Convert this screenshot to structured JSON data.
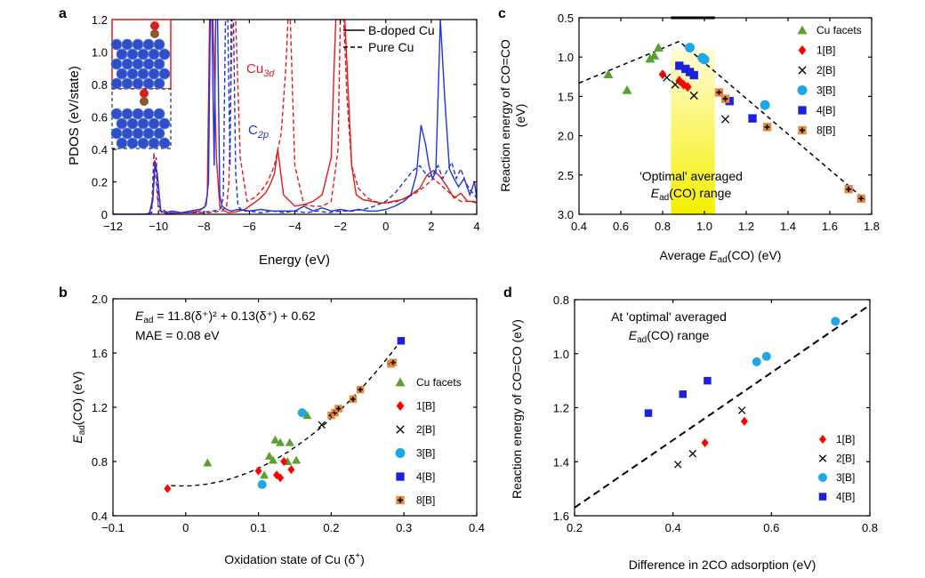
{
  "chart_data": [
    {
      "id": "a",
      "panel_label": "a",
      "type": "line",
      "xlabel": "Energy (eV)",
      "ylabel": "PDOS (eV/state)",
      "xlim": [
        -12,
        4
      ],
      "ylim": [
        0,
        1.2
      ],
      "xticks": [
        "−12",
        "−10",
        "−8",
        "−6",
        "−4",
        "−2",
        "0",
        "2",
        "4"
      ],
      "yticks": [
        "0",
        "0.2",
        "0.4",
        "0.6",
        "0.8",
        "1.0",
        "1.2"
      ],
      "legend": [
        {
          "label": "B-doped Cu",
          "style": "solid"
        },
        {
          "label": "Pure Cu",
          "style": "dashed"
        }
      ],
      "series_labels": [
        {
          "text": "Cu",
          "sub": "3d",
          "color": "#e41a1c"
        },
        {
          "text": "C",
          "sub": "2p",
          "color": "#1f33e0"
        }
      ],
      "series": [
        {
          "name": "Cu3d B-doped",
          "color": "#e41a1c",
          "dash": false,
          "x": [
            -12,
            -10.6,
            -10.4,
            -10.25,
            -10.15,
            -10.05,
            -9.9,
            -9.6,
            -9.2,
            -8.7,
            -8.2,
            -7.95,
            -7.85,
            -7.75,
            -7.6,
            -7.45,
            -7.3,
            -7.1,
            -6.9,
            -6.6,
            -6.2,
            -5.9,
            -5.6,
            -5.3,
            -5.1,
            -4.9,
            -4.8,
            -4.75,
            -4.5,
            -4.0,
            -3.6,
            -3.2,
            -2.8,
            -2.4,
            -2.3,
            -2.2,
            -2.0,
            -1.8,
            -1.6,
            -1.5,
            -1.3,
            -1.0,
            -0.6,
            -0.3,
            0,
            0.3,
            0.7,
            1.1,
            1.5,
            1.8,
            2.1,
            2.4,
            2.7,
            3.0,
            3.3,
            3.6,
            3.9,
            4
          ],
          "y": [
            0,
            0,
            0.005,
            0.1,
            0.33,
            0.25,
            0.02,
            0.005,
            0.008,
            0.01,
            0.02,
            0.05,
            0.12,
            1.2,
            1.2,
            0.35,
            0.05,
            0.02,
            0.01,
            0.015,
            0.03,
            0.06,
            0.09,
            0.13,
            0.18,
            0.25,
            0.35,
            0.4,
            0.12,
            0.05,
            0.06,
            0.08,
            0.12,
            0.35,
            0.8,
            1.2,
            1.2,
            1.2,
            0.6,
            0.3,
            0.12,
            0.09,
            0.08,
            0.07,
            0.07,
            0.08,
            0.09,
            0.12,
            0.16,
            0.24,
            0.27,
            0.23,
            0.17,
            0.1,
            0.13,
            0.08,
            0.08,
            0.07
          ]
        },
        {
          "name": "Cu3d Pure",
          "color": "#e41a1c",
          "dash": true,
          "x": [
            -12,
            -10.6,
            -10.3,
            -10.2,
            -10.0,
            -9.8,
            -9.2,
            -8.5,
            -7.8,
            -7.2,
            -7.0,
            -6.9,
            -6.75,
            -6.6,
            -6.4,
            -6.1,
            -5.8,
            -5.5,
            -5.2,
            -4.9,
            -4.6,
            -4.4,
            -4.3,
            -4.2,
            -4.0,
            -3.6,
            -3.2,
            -2.8,
            -2.4,
            -2.1,
            -2.0,
            -1.85,
            -1.7,
            -1.5,
            -1.2,
            -1.0,
            -0.8,
            -0.5,
            -0.2,
            0.1,
            0.5,
            0.9,
            1.3,
            1.7,
            2.1,
            2.5,
            2.9,
            3.3,
            3.7,
            4
          ],
          "y": [
            0,
            0,
            0.01,
            0.38,
            0.03,
            0.005,
            0.008,
            0.01,
            0.01,
            0.02,
            0.05,
            0.2,
            1.2,
            1.2,
            0.35,
            0.08,
            0.1,
            0.14,
            0.2,
            0.3,
            0.5,
            0.9,
            1.2,
            1.2,
            0.3,
            0.06,
            0.05,
            0.05,
            0.08,
            0.4,
            1.2,
            1.2,
            0.7,
            0.3,
            0.16,
            0.13,
            0.1,
            0.08,
            0.07,
            0.07,
            0.08,
            0.1,
            0.13,
            0.17,
            0.22,
            0.17,
            0.12,
            0.08,
            0.08,
            0.07
          ]
        },
        {
          "name": "C2p B-doped",
          "color": "#1f33e0",
          "dash": false,
          "x": [
            -12,
            -10.7,
            -10.4,
            -10.25,
            -10.15,
            -10.05,
            -9.9,
            -9.7,
            -9.4,
            -9.0,
            -8.6,
            -8.2,
            -8.0,
            -7.9,
            -7.8,
            -7.72,
            -7.65,
            -7.55,
            -7.48,
            -7.4,
            -7.3,
            -7.2,
            -7.0,
            -6.8,
            -6.5,
            -6.0,
            -5.5,
            -5.0,
            -4.5,
            -4.0,
            -3.6,
            -3.2,
            -2.8,
            -2.4,
            -2.0,
            -1.6,
            -1.2,
            -0.8,
            -0.4,
            0,
            0.4,
            0.8,
            1.1,
            1.35,
            1.55,
            1.75,
            1.9,
            2.05,
            2.2,
            2.4,
            2.6,
            2.8,
            3.0,
            3.2,
            3.45,
            3.7,
            3.9,
            4
          ],
          "y": [
            0,
            0,
            0.005,
            0.08,
            0.3,
            0.25,
            0.02,
            0.01,
            0.02,
            0.01,
            0.02,
            0.03,
            0.04,
            0.06,
            0.2,
            1.2,
            1.2,
            0.3,
            1.2,
            1.2,
            0.12,
            0.05,
            0.03,
            0.02,
            0.03,
            0.02,
            0.03,
            0.02,
            0.02,
            0.02,
            0.05,
            0.02,
            0.04,
            0.02,
            0.03,
            0.02,
            0.03,
            0.02,
            0.02,
            0.03,
            0.05,
            0.08,
            0.12,
            0.25,
            0.55,
            0.43,
            0.3,
            0.22,
            0.26,
            1.2,
            0.7,
            0.28,
            0.22,
            0.17,
            0.22,
            0.12,
            0.2,
            0.1
          ]
        },
        {
          "name": "C2p Pure",
          "color": "#1f33e0",
          "dash": true,
          "x": [
            -12,
            -10.6,
            -10.3,
            -10.2,
            -10.1,
            -10.0,
            -9.6,
            -9.0,
            -8.2,
            -7.6,
            -7.3,
            -7.15,
            -7.05,
            -6.95,
            -6.85,
            -6.8,
            -6.7,
            -6.6,
            -6.5,
            -6.3,
            -6.0,
            -5.5,
            -5.0,
            -4.5,
            -4.0,
            -3.5,
            -3.0,
            -2.5,
            -2.0,
            -1.5,
            -1.0,
            -0.5,
            0,
            0.4,
            0.8,
            1.2,
            1.5,
            1.7,
            1.9,
            2.1,
            2.3,
            2.5,
            2.7,
            2.9,
            3.1,
            3.3,
            3.5,
            3.7,
            3.9,
            4
          ],
          "y": [
            0,
            0,
            0.01,
            0.3,
            0.35,
            0.05,
            0.01,
            0.01,
            0.01,
            0.02,
            0.03,
            0.1,
            1.2,
            1.2,
            0.3,
            1.2,
            1.2,
            0.25,
            0.05,
            0.02,
            0.02,
            0.01,
            0.02,
            0.01,
            0.02,
            0.01,
            0.02,
            0.01,
            0.02,
            0.02,
            0.03,
            0.05,
            0.08,
            0.13,
            0.2,
            0.27,
            0.3,
            0.26,
            0.23,
            0.25,
            0.3,
            0.22,
            0.27,
            0.32,
            0.22,
            0.28,
            0.2,
            0.15,
            0.12,
            0.1
          ]
        }
      ]
    },
    {
      "id": "c",
      "panel_label": "c",
      "type": "scatter",
      "xlabel_pre": "Average ",
      "xlabel_it": "E",
      "xlabel_sub": "ad",
      "xlabel_post": "(CO) (eV)",
      "ylabel_lines": [
        "Reaction energy of CO=CO",
        "(eV)"
      ],
      "xlim": [
        0.4,
        1.8
      ],
      "ylim": [
        0.5,
        3.0
      ],
      "y_inverted": true,
      "xticks": [
        0.4,
        0.6,
        0.8,
        1.0,
        1.2,
        1.4,
        1.6,
        1.8
      ],
      "yticks": [
        0.5,
        1.0,
        1.5,
        2.0,
        2.5,
        3.0
      ],
      "xtick_labels": [
        "0.4",
        "0.6",
        "0.8",
        "1.0",
        "1.2",
        "1.4",
        "1.6",
        "1.8"
      ],
      "ytick_labels": [
        "0.5",
        "1.0",
        "1.5",
        "2.0",
        "2.5",
        "3.0"
      ],
      "optimal_range_x": [
        0.84,
        1.05
      ],
      "annotation_line1": "'Optimal' averaged",
      "annotation_line2_it": "E",
      "annotation_line2_sub": "ad",
      "annotation_line2_post": "(CO) range",
      "fit_line": {
        "x": [
          0.4,
          0.88,
          1.77
        ],
        "y": [
          1.33,
          0.8,
          2.82
        ]
      },
      "series": [
        {
          "name": "Cu facets",
          "marker": "triangle",
          "color": "#5aa02c",
          "x": [
            0.54,
            0.63,
            0.74,
            0.76,
            0.78
          ],
          "y": [
            1.22,
            1.42,
            1.02,
            0.98,
            0.88
          ]
        },
        {
          "name": "1[B]",
          "marker": "diamond",
          "color": "#ff0000",
          "x": [
            0.8,
            0.88,
            0.9,
            0.92
          ],
          "y": [
            1.22,
            1.3,
            1.35,
            1.38
          ]
        },
        {
          "name": "2[B]",
          "marker": "x",
          "color": "#000000",
          "x": [
            0.82,
            0.86,
            0.95,
            1.1
          ],
          "y": [
            1.26,
            1.35,
            1.49,
            1.79
          ]
        },
        {
          "name": "3[B]",
          "marker": "circle",
          "color": "#1ea7e8",
          "x": [
            0.93,
            0.99,
            1.0,
            1.29
          ],
          "y": [
            0.88,
            1.01,
            1.03,
            1.61
          ]
        },
        {
          "name": "4[B]",
          "marker": "square",
          "color": "#1a22e0",
          "x": [
            0.88,
            0.91,
            0.93,
            0.95,
            1.12,
            1.23
          ],
          "y": [
            1.11,
            1.15,
            1.19,
            1.23,
            1.56,
            1.78
          ]
        },
        {
          "name": "8[B]",
          "marker": "plus-square",
          "color": "#e8893a",
          "x": [
            1.07,
            1.1,
            1.3,
            1.69,
            1.75
          ],
          "y": [
            1.45,
            1.53,
            1.89,
            2.68,
            2.8
          ]
        }
      ]
    },
    {
      "id": "b",
      "panel_label": "b",
      "type": "scatter",
      "xlabel": "Oxidation state of Cu (δ",
      "xlabel_sup": "+",
      "xlabel_end": ")",
      "ylabel_it": "E",
      "ylabel_sub": "ad",
      "ylabel_post": "(CO) (eV)",
      "xlim": [
        -0.1,
        0.4
      ],
      "ylim": [
        0.4,
        2.0
      ],
      "xticks": [
        -0.1,
        0,
        0.1,
        0.2,
        0.3,
        0.4
      ],
      "yticks": [
        0.4,
        0.8,
        1.2,
        1.6,
        2.0
      ],
      "xtick_labels": [
        "−0.1",
        "0",
        "0.1",
        "0.2",
        "0.3",
        "0.4"
      ],
      "ytick_labels": [
        "0.4",
        "0.8",
        "1.2",
        "1.6",
        "2.0"
      ],
      "equation_lhs": "E",
      "equation_lhs_sub": "ad",
      "equation_rhs": " = 11.8(δ⁺)² + 0.13(δ⁺) + 0.62",
      "mae_text": "MAE = 0.08 eV",
      "fit_coeffs": [
        11.8,
        0.13,
        0.62
      ],
      "fit_xrange": [
        -0.02,
        0.29
      ],
      "series": [
        {
          "name": "Cu facets",
          "marker": "triangle",
          "color": "#5aa02c",
          "x": [
            0.03,
            0.108,
            0.115,
            0.12,
            0.123,
            0.13,
            0.14,
            0.143,
            0.152,
            0.167
          ],
          "y": [
            0.79,
            0.7,
            0.84,
            0.81,
            0.96,
            0.94,
            0.8,
            0.94,
            0.81,
            1.14
          ]
        },
        {
          "name": "1[B]",
          "marker": "diamond",
          "color": "#ff0000",
          "x": [
            -0.025,
            0.1,
            0.125,
            0.13,
            0.135,
            0.145
          ],
          "y": [
            0.6,
            0.73,
            0.7,
            0.68,
            0.8,
            0.74
          ]
        },
        {
          "name": "2[B]",
          "marker": "x",
          "color": "#000000",
          "x": [
            0.187
          ],
          "y": [
            1.07
          ]
        },
        {
          "name": "3[B]",
          "marker": "circle",
          "color": "#1ea7e8",
          "x": [
            0.105,
            0.16
          ],
          "y": [
            0.63,
            1.16
          ]
        },
        {
          "name": "4[B]",
          "marker": "square",
          "color": "#1a22e0",
          "x": [
            0.296
          ],
          "y": [
            1.69
          ]
        },
        {
          "name": "8[B]",
          "marker": "plus-square",
          "color": "#e8893a",
          "x": [
            0.2,
            0.205,
            0.21,
            0.23,
            0.24,
            0.282,
            0.285
          ],
          "y": [
            1.14,
            1.16,
            1.19,
            1.26,
            1.33,
            1.52,
            1.53
          ]
        }
      ]
    },
    {
      "id": "d",
      "panel_label": "d",
      "type": "scatter",
      "xlabel": "Difference in 2CO adsorption (eV)",
      "ylabel": "Reaction energy of CO=CO (eV)",
      "xlim": [
        0.2,
        0.8
      ],
      "ylim": [
        0.8,
        1.6
      ],
      "y_inverted": true,
      "xticks": [
        0.2,
        0.4,
        0.6,
        0.8
      ],
      "yticks": [
        0.8,
        1.0,
        1.2,
        1.4,
        1.6
      ],
      "xtick_labels": [
        "0.2",
        "0.4",
        "0.6",
        "0.8"
      ],
      "ytick_labels": [
        "0.8",
        "1.0",
        "1.2",
        "1.4",
        "1.6"
      ],
      "annotation_line1": "At 'optimal' averaged",
      "annotation_line2_it": "E",
      "annotation_line2_sub": "ad",
      "annotation_line2_post": "(CO) range",
      "fit_line": {
        "x": [
          0.2,
          0.8
        ],
        "y": [
          1.57,
          0.82
        ]
      },
      "series": [
        {
          "name": "1[B]",
          "marker": "diamond",
          "color": "#ff0000",
          "x": [
            0.465,
            0.545
          ],
          "y": [
            1.33,
            1.25
          ]
        },
        {
          "name": "2[B]",
          "marker": "x",
          "color": "#000000",
          "x": [
            0.41,
            0.44,
            0.54
          ],
          "y": [
            1.41,
            1.37,
            1.21
          ]
        },
        {
          "name": "3[B]",
          "marker": "circle",
          "color": "#1ea7e8",
          "x": [
            0.57,
            0.59,
            0.73
          ],
          "y": [
            1.03,
            1.01,
            0.88
          ]
        },
        {
          "name": "4[B]",
          "marker": "square",
          "color": "#1a22e0",
          "x": [
            0.35,
            0.42,
            0.47
          ],
          "y": [
            1.22,
            1.15,
            1.1
          ]
        }
      ]
    }
  ]
}
